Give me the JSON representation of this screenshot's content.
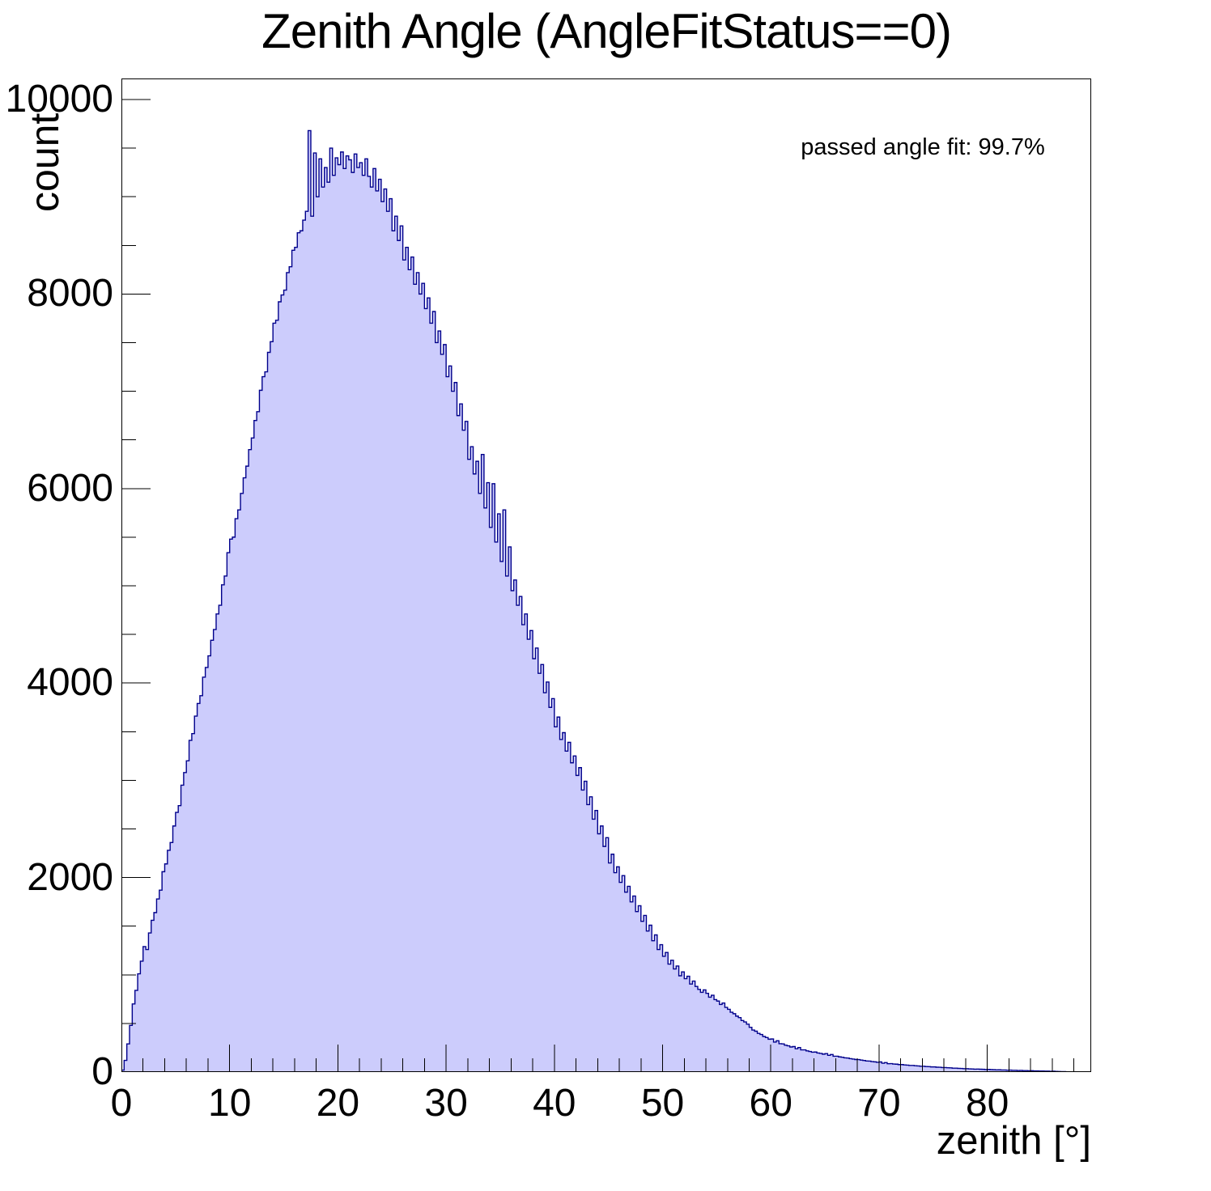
{
  "chart_data": {
    "type": "bar",
    "subtype": "histogram",
    "title": "Zenith Angle (AngleFitStatus==0)",
    "xlabel": "zenith [°]",
    "ylabel": "count",
    "annotation": "passed angle fit: 99.7%",
    "xlim": [
      0,
      89.6
    ],
    "ylim": [
      0,
      10216
    ],
    "x_major_ticks": [
      0,
      10,
      20,
      30,
      40,
      50,
      60,
      70,
      80
    ],
    "x_minor_step": 2,
    "y_major_ticks": [
      0,
      2000,
      4000,
      6000,
      8000,
      10000
    ],
    "y_minor_step": 500,
    "grid": false,
    "legend": false,
    "bin_start": 0,
    "bin_width": 0.25,
    "fill_color": "#ccccfc",
    "line_color": "#00008b",
    "frame_color": "#000000",
    "values": [
      20,
      120,
      290,
      480,
      700,
      840,
      1010,
      1140,
      1290,
      1260,
      1430,
      1560,
      1640,
      1780,
      1870,
      2060,
      2140,
      2280,
      2360,
      2530,
      2670,
      2740,
      2950,
      3080,
      3200,
      3410,
      3480,
      3660,
      3790,
      3870,
      4060,
      4160,
      4280,
      4440,
      4550,
      4710,
      4800,
      5010,
      5100,
      5340,
      5480,
      5500,
      5690,
      5780,
      5950,
      6110,
      6230,
      6400,
      6520,
      6700,
      6790,
      7010,
      7150,
      7200,
      7400,
      7510,
      7700,
      7730,
      7920,
      7990,
      8040,
      8220,
      8280,
      8450,
      8480,
      8630,
      8650,
      8760,
      8850,
      9680,
      8800,
      9450,
      9000,
      9390,
      9100,
      9300,
      9150,
      9500,
      9220,
      9400,
      9330,
      9460,
      9290,
      9420,
      9380,
      9250,
      9440,
      9300,
      9350,
      9220,
      9390,
      9210,
      9100,
      9290,
      9060,
      9180,
      8950,
      9080,
      8850,
      8980,
      8650,
      8800,
      8550,
      8700,
      8350,
      8480,
      8250,
      8380,
      8100,
      8220,
      8000,
      8110,
      7850,
      7960,
      7700,
      7820,
      7500,
      7620,
      7380,
      7480,
      7150,
      7260,
      7000,
      7090,
      6750,
      6870,
      6600,
      6690,
      6300,
      6430,
      6150,
      6280,
      5950,
      6350,
      5800,
      6060,
      5600,
      6050,
      5450,
      5740,
      5250,
      5780,
      5100,
      5400,
      4950,
      5060,
      4800,
      4890,
      4600,
      4710,
      4450,
      4540,
      4250,
      4360,
      4100,
      4190,
      3900,
      4010,
      3750,
      3840,
      3550,
      3650,
      3420,
      3490,
      3300,
      3390,
      3180,
      3250,
      3050,
      3130,
      2900,
      2990,
      2750,
      2830,
      2600,
      2690,
      2450,
      2530,
      2320,
      2410,
      2150,
      2240,
      2050,
      2110,
      1950,
      2020,
      1850,
      1910,
      1750,
      1810,
      1650,
      1710,
      1550,
      1610,
      1450,
      1510,
      1350,
      1410,
      1260,
      1310,
      1190,
      1230,
      1110,
      1150,
      1060,
      1090,
      990,
      1030,
      960,
      985,
      905,
      935,
      880,
      850,
      820,
      845,
      810,
      770,
      790,
      745,
      730,
      695,
      710,
      665,
      645,
      615,
      600,
      575,
      560,
      530,
      515,
      492,
      460,
      432,
      420,
      398,
      386,
      366,
      355,
      338,
      340,
      308,
      322,
      292,
      290,
      276,
      270,
      258,
      262,
      240,
      252,
      228,
      228,
      218,
      212,
      204,
      206,
      196,
      192,
      184,
      190,
      172,
      180,
      163,
      163,
      156,
      152,
      146,
      144,
      138,
      134,
      129,
      128,
      123,
      119,
      114,
      113,
      108,
      105,
      100,
      104,
      91,
      97,
      86,
      87,
      83,
      81,
      77,
      77,
      73,
      71,
      68,
      68,
      65,
      63,
      60,
      60,
      57,
      56,
      53,
      53,
      50,
      49,
      46,
      46,
      44,
      43,
      40,
      40,
      38,
      37,
      35,
      35,
      33,
      32,
      30,
      31,
      29,
      28,
      26,
      27,
      25,
      24,
      22,
      23,
      21,
      21,
      19,
      20,
      18,
      18,
      16,
      17,
      15,
      15,
      13,
      14,
      12,
      12,
      11,
      11,
      10,
      10,
      8,
      9,
      7,
      6,
      5,
      5,
      3,
      2,
      2
    ]
  }
}
